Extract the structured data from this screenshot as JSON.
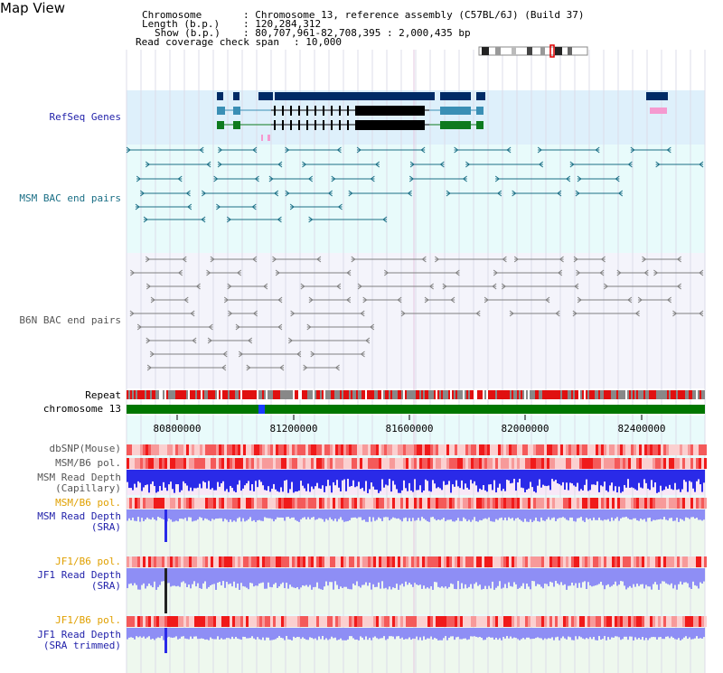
{
  "page": {
    "title": "Map View"
  },
  "info": {
    "chromosome_label": "Chromosome",
    "chromosome_value": ": Chromosome 13, reference assembly (C57BL/6J) (Build 37)",
    "length_label": "Length (b.p.)",
    "length_value": ": 120,284,312",
    "show_label": "Show (b.p.)",
    "show_value": ": 80,707,961-82,708,395 : 2,000,435 bp",
    "coverage_label": "Read coverage check span",
    "coverage_value": ": 10,000"
  },
  "tracks": {
    "refseq": "RefSeq Genes",
    "msm_bac": "MSM BAC end pairs",
    "b6n_bac": "B6N BAC end pairs",
    "repeat": "Repeat",
    "chromosome": "chromosome 13",
    "dbsnp": "dbSNP(Mouse)",
    "msm_b6_pol_1": "MSM/B6 pol.",
    "msm_depth_cap_1": "MSM Read Depth",
    "msm_depth_cap_2": "(Capillary)",
    "msm_b6_pol_2": "MSM/B6 pol.",
    "msm_depth_sra_1": "MSM Read Depth",
    "msm_depth_sra_2": "(SRA)",
    "jf1_pol_1": "JF1/B6 pol.",
    "jf1_depth_1": "JF1 Read Depth",
    "jf1_depth_2": "(SRA)",
    "jf1_pol_2": "JF1/B6 pol.",
    "jf1_trim_1": "JF1 Read Depth",
    "jf1_trim_2": "(SRA trimmed)"
  },
  "axis": {
    "ticks": [
      "80800000",
      "81200000",
      "81600000",
      "82000000",
      "82400000"
    ]
  },
  "colors": {
    "refseq_bg": "#def0fb",
    "msm_bac_bg": "#e8fbfb",
    "gene_dark": "#002b66",
    "gene_teal": "#3a8fb5",
    "gene_green": "#0e7a1e",
    "chrom_green": "#007700",
    "msm_bac_line": "#1b6f86",
    "b6n_bac_line": "#808080",
    "depth_blue": "#2a2ae8",
    "depth_light": "#8e8ef5",
    "label_blue": "#2222aa",
    "label_teal": "#1b6f86",
    "label_orange": "#e0a000"
  }
}
